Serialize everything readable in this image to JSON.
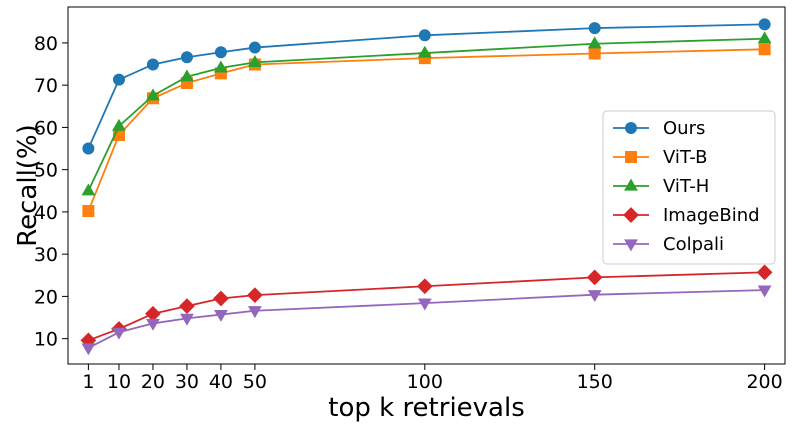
{
  "chart_data": {
    "type": "line",
    "title": "",
    "xlabel": "top k retrievals",
    "ylabel": "Recall(%)",
    "x": [
      1,
      10,
      20,
      30,
      40,
      50,
      100,
      150,
      200
    ],
    "x_ticks": [
      1,
      10,
      20,
      30,
      40,
      50,
      100,
      150,
      200
    ],
    "y_ticks": [
      10,
      20,
      30,
      40,
      50,
      60,
      70,
      80
    ],
    "xlim": [
      -5,
      206
    ],
    "ylim": [
      4,
      88.5
    ],
    "grid": false,
    "legend_position": "center-right",
    "series": [
      {
        "name": "Ours",
        "marker": "circle",
        "color": "#1f77b4",
        "values": [
          55.0,
          71.3,
          74.9,
          76.6,
          77.8,
          78.9,
          81.8,
          83.5,
          84.4
        ]
      },
      {
        "name": "ViT-B",
        "marker": "square",
        "color": "#ff7f0e",
        "values": [
          40.2,
          58.2,
          66.9,
          70.5,
          72.8,
          74.9,
          76.4,
          77.5,
          78.5
        ]
      },
      {
        "name": "ViT-H",
        "marker": "triangle-up",
        "color": "#2ca02c",
        "values": [
          45.0,
          60.3,
          67.5,
          72.0,
          74.1,
          75.4,
          77.6,
          79.8,
          81.0
        ]
      },
      {
        "name": "ImageBind",
        "marker": "diamond",
        "color": "#d62728",
        "values": [
          9.6,
          12.3,
          15.9,
          17.7,
          19.5,
          20.3,
          22.4,
          24.5,
          25.7
        ]
      },
      {
        "name": "Colpali",
        "marker": "triangle-down",
        "color": "#9467bd",
        "values": [
          7.8,
          11.5,
          13.6,
          14.8,
          15.7,
          16.6,
          18.4,
          20.4,
          21.5
        ]
      }
    ]
  }
}
